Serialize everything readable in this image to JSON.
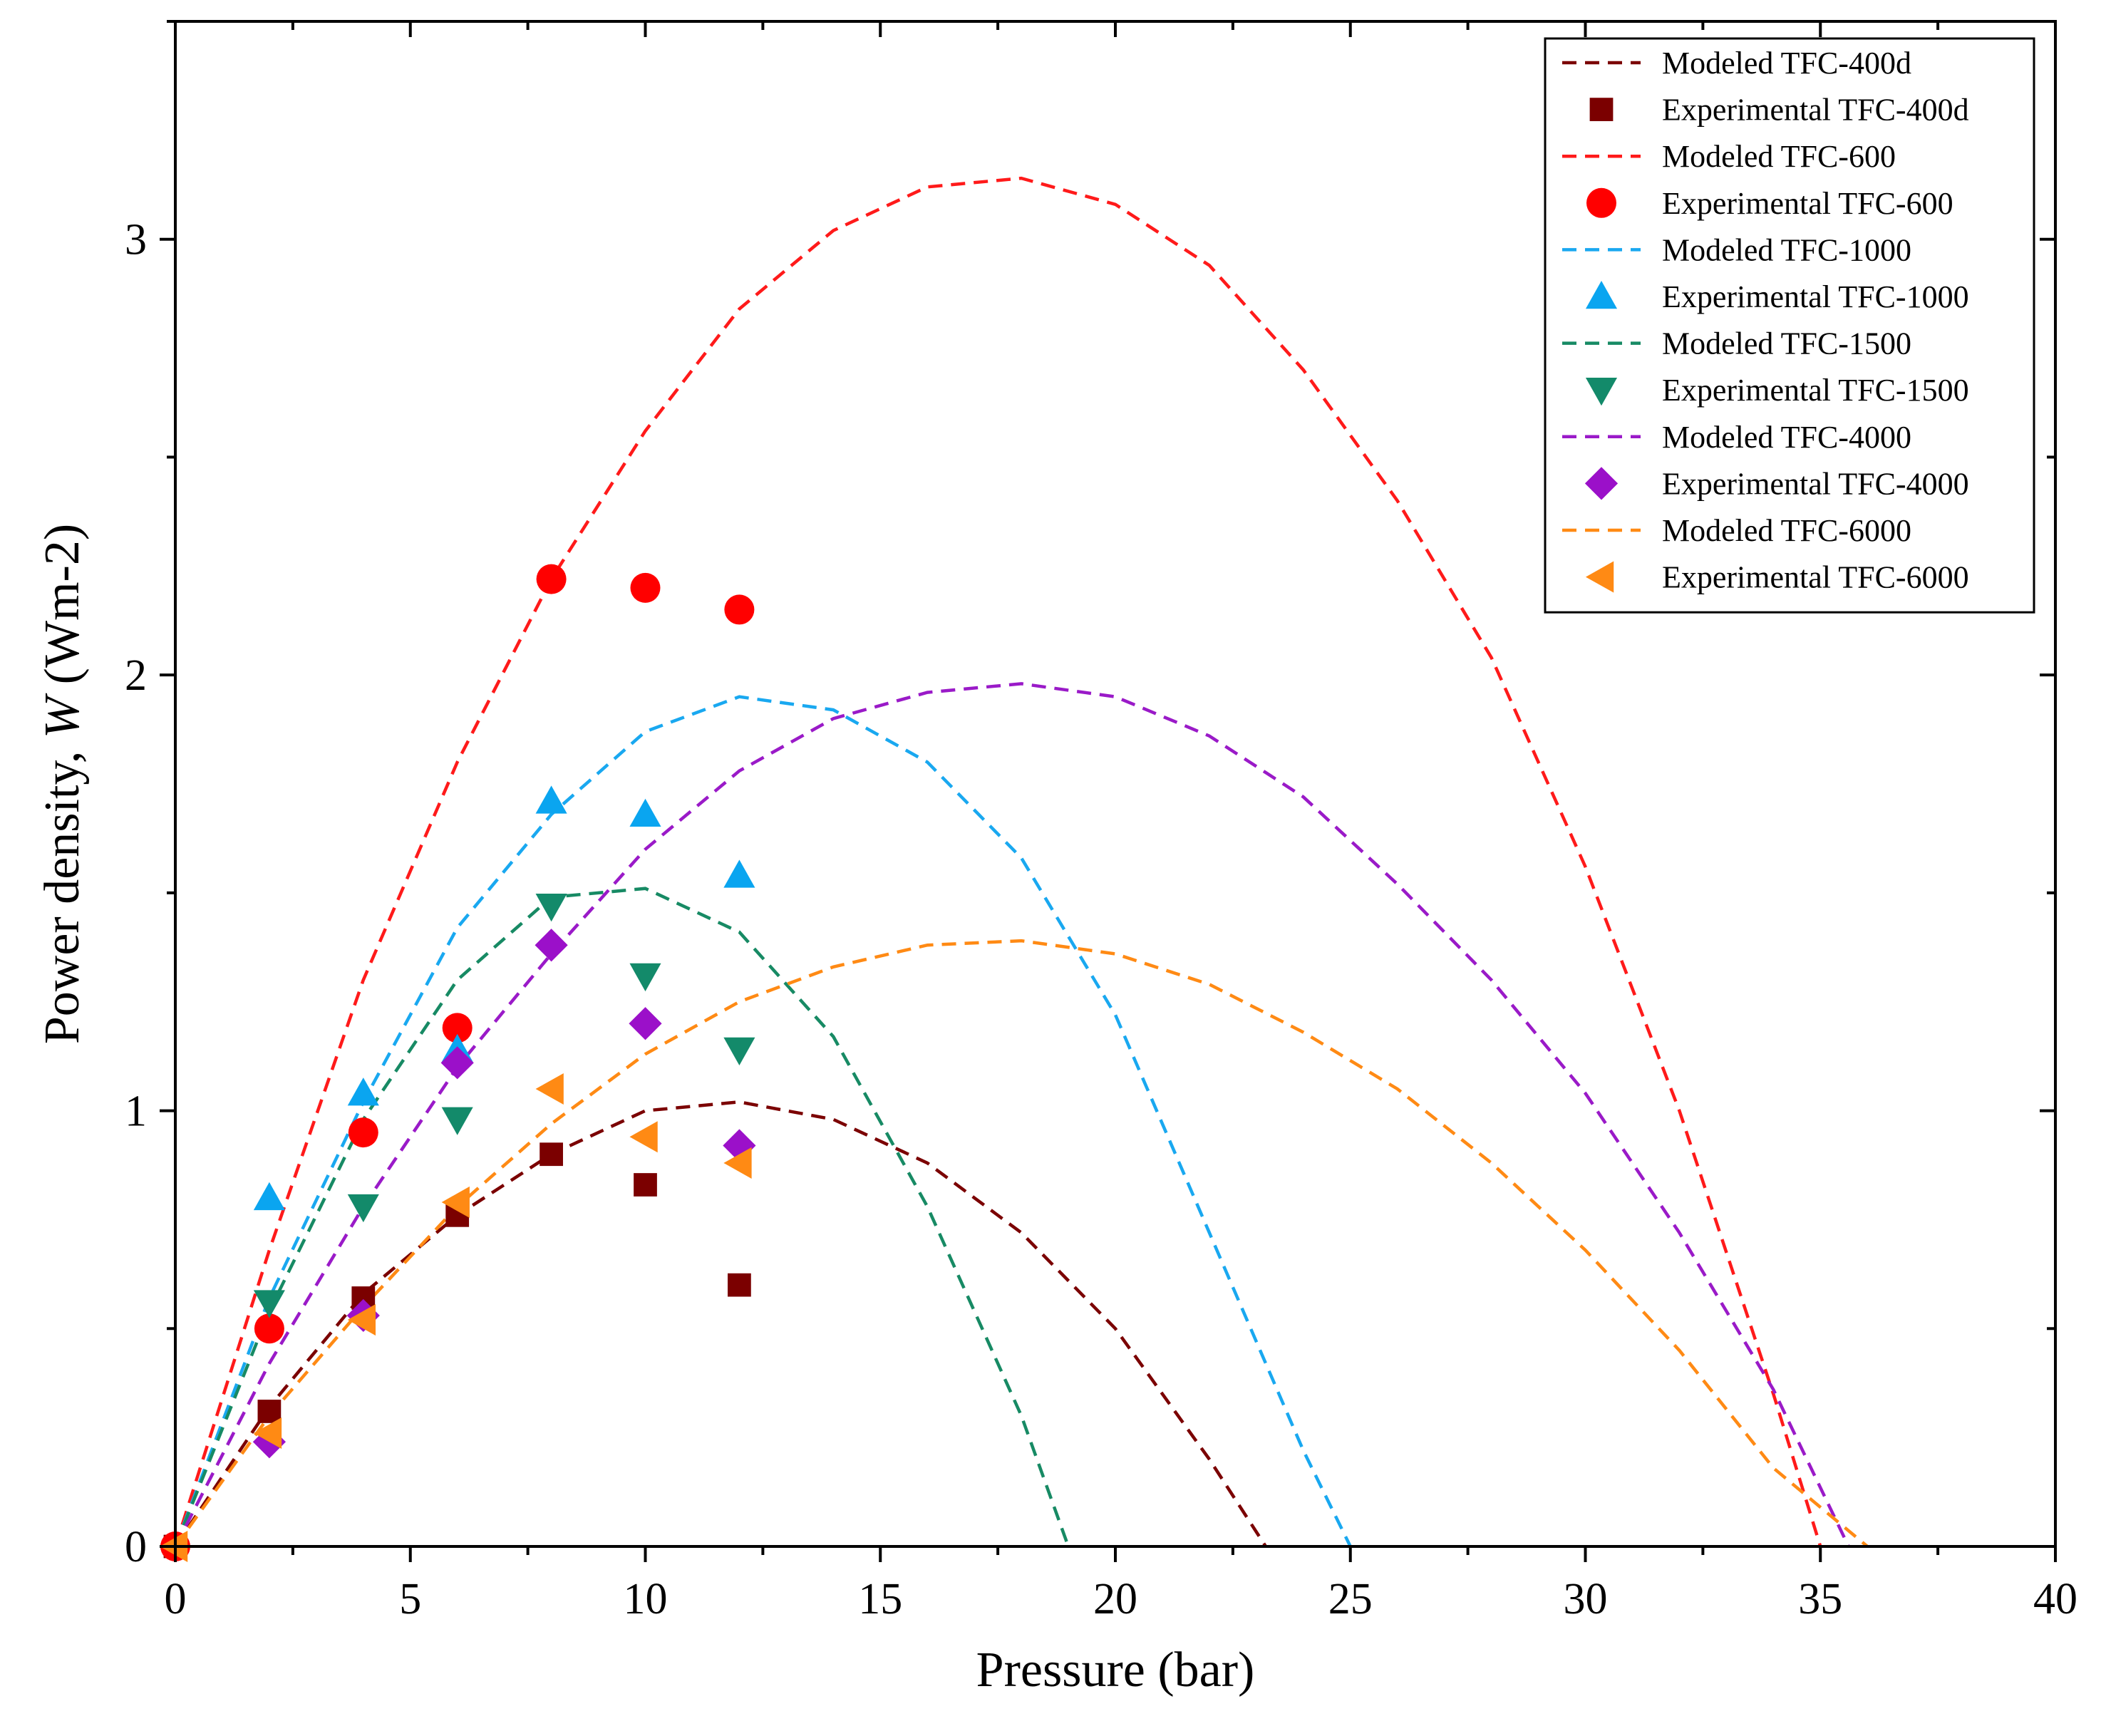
{
  "chart_data": {
    "type": "line",
    "title": "",
    "xlabel": "Pressure (bar)",
    "ylabel_prefix": "Power density, ",
    "ylabel_symbol": "W",
    "ylabel_suffix": " (Wm-2)",
    "xlim": [
      0,
      40
    ],
    "ylim": [
      0,
      3.5
    ],
    "xticks": [
      0,
      5,
      10,
      15,
      20,
      25,
      30,
      35,
      40
    ],
    "yticks": [
      0,
      1,
      2,
      3
    ],
    "grid": false,
    "legend_position": "top-right",
    "series": [
      {
        "name": "Modeled TFC-400d",
        "kind": "line",
        "color": "#7b0000",
        "x": [
          0,
          2,
          4,
          6,
          8,
          10,
          12,
          14,
          16,
          18,
          20,
          22,
          23.2
        ],
        "y": [
          0,
          0.32,
          0.58,
          0.76,
          0.9,
          1.0,
          1.02,
          0.98,
          0.88,
          0.72,
          0.5,
          0.2,
          0
        ]
      },
      {
        "name": "Experimental TFC-400d",
        "kind": "marker",
        "marker": "square",
        "color": "#7b0000",
        "x": [
          0,
          2,
          4,
          6,
          8,
          10,
          12
        ],
        "y": [
          0,
          0.31,
          0.57,
          0.76,
          0.9,
          0.83,
          0.6
        ]
      },
      {
        "name": "Modeled TFC-600",
        "kind": "line",
        "color": "#ff1a1a",
        "x": [
          0,
          2,
          4,
          6,
          8,
          10,
          12,
          14,
          16,
          18,
          20,
          22,
          24,
          26,
          28,
          30,
          32,
          34,
          35
        ],
        "y": [
          0,
          0.68,
          1.3,
          1.8,
          2.22,
          2.56,
          2.84,
          3.02,
          3.12,
          3.14,
          3.08,
          2.94,
          2.7,
          2.4,
          2.04,
          1.56,
          1.0,
          0.35,
          0
        ]
      },
      {
        "name": "Experimental TFC-600",
        "kind": "marker",
        "marker": "circle",
        "color": "#ff0000",
        "x": [
          0,
          2,
          4,
          6,
          8,
          10,
          12
        ],
        "y": [
          0,
          0.5,
          0.95,
          1.19,
          2.22,
          2.2,
          2.15
        ]
      },
      {
        "name": "Modeled TFC-1000",
        "kind": "line",
        "color": "#19a8f0",
        "x": [
          0,
          2,
          4,
          6,
          8,
          10,
          12,
          14,
          16,
          18,
          20,
          22,
          24,
          25
        ],
        "y": [
          0,
          0.57,
          1.02,
          1.42,
          1.68,
          1.87,
          1.95,
          1.92,
          1.8,
          1.58,
          1.22,
          0.72,
          0.22,
          0
        ]
      },
      {
        "name": "Experimental TFC-1000",
        "kind": "marker",
        "marker": "triangle-up",
        "color": "#0aa5f0",
        "x": [
          2,
          4,
          6,
          8,
          10,
          12
        ],
        "y": [
          0.8,
          1.04,
          1.14,
          1.71,
          1.68,
          1.54
        ]
      },
      {
        "name": "Modeled TFC-1500",
        "kind": "line",
        "color": "#178a64",
        "x": [
          0,
          2,
          4,
          6,
          8,
          10,
          12,
          14,
          16,
          18,
          19
        ],
        "y": [
          0,
          0.54,
          0.98,
          1.3,
          1.49,
          1.51,
          1.41,
          1.17,
          0.78,
          0.3,
          0
        ]
      },
      {
        "name": "Experimental TFC-1500",
        "kind": "marker",
        "marker": "triangle-down",
        "color": "#138a6a",
        "x": [
          2,
          4,
          6,
          8,
          10,
          12
        ],
        "y": [
          0.56,
          0.78,
          0.98,
          1.47,
          1.31,
          1.14
        ]
      },
      {
        "name": "Modeled TFC-4000",
        "kind": "line",
        "color": "#9a1ac8",
        "x": [
          0,
          2,
          4,
          6,
          8,
          10,
          12,
          14,
          16,
          18,
          20,
          22,
          24,
          26,
          28,
          30,
          32,
          34,
          35.6
        ],
        "y": [
          0,
          0.42,
          0.78,
          1.1,
          1.36,
          1.6,
          1.78,
          1.9,
          1.96,
          1.98,
          1.95,
          1.86,
          1.72,
          1.52,
          1.3,
          1.04,
          0.72,
          0.36,
          0
        ]
      },
      {
        "name": "Experimental TFC-4000",
        "kind": "marker",
        "marker": "diamond",
        "color": "#9b10c9",
        "x": [
          2,
          4,
          6,
          8,
          10,
          12
        ],
        "y": [
          0.24,
          0.53,
          1.11,
          1.38,
          1.2,
          0.92
        ]
      },
      {
        "name": "Modeled TFC-6000",
        "kind": "line",
        "color": "#ff8a14",
        "x": [
          0,
          2,
          4,
          6,
          8,
          10,
          12,
          14,
          16,
          18,
          20,
          22,
          24,
          26,
          28,
          30,
          32,
          34,
          36
        ],
        "y": [
          0,
          0.3,
          0.55,
          0.78,
          0.97,
          1.13,
          1.25,
          1.33,
          1.38,
          1.39,
          1.36,
          1.29,
          1.18,
          1.05,
          0.88,
          0.68,
          0.45,
          0.18,
          0
        ]
      },
      {
        "name": "Experimental TFC-6000",
        "kind": "marker",
        "marker": "triangle-left",
        "color": "#ff8a14",
        "x": [
          0,
          2,
          4,
          6,
          8,
          10,
          12
        ],
        "y": [
          0,
          0.26,
          0.52,
          0.79,
          1.05,
          0.94,
          0.88
        ]
      }
    ]
  }
}
